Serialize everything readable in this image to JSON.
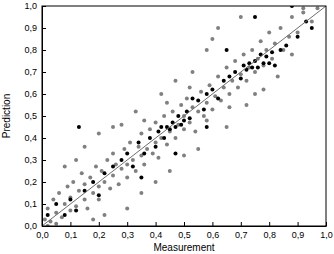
{
  "chart_data": {
    "type": "scatter",
    "x_label": "Measurement",
    "y_label": "Prediction",
    "xlim": [
      0,
      1
    ],
    "ylim": [
      0,
      1
    ],
    "xticks": [
      {
        "value": 0,
        "label": "0,0"
      },
      {
        "value": 0.1,
        "label": "0,1"
      },
      {
        "value": 0.2,
        "label": "0,2"
      },
      {
        "value": 0.3,
        "label": "0,3"
      },
      {
        "value": 0.4,
        "label": "0,4"
      },
      {
        "value": 0.5,
        "label": "0,5"
      },
      {
        "value": 0.6,
        "label": "0,6"
      },
      {
        "value": 0.7,
        "label": "0,7"
      },
      {
        "value": 0.8,
        "label": "0,8"
      },
      {
        "value": 0.9,
        "label": "0,9"
      },
      {
        "value": 1,
        "label": "1,0"
      }
    ],
    "yticks": [
      {
        "value": 0,
        "label": "0,0"
      },
      {
        "value": 0.1,
        "label": "0,1"
      },
      {
        "value": 0.2,
        "label": "0,2"
      },
      {
        "value": 0.3,
        "label": "0,3"
      },
      {
        "value": 0.4,
        "label": "0,4"
      },
      {
        "value": 0.5,
        "label": "0,5"
      },
      {
        "value": 0.6,
        "label": "0,6"
      },
      {
        "value": 0.7,
        "label": "0,7"
      },
      {
        "value": 0.8,
        "label": "0,8"
      },
      {
        "value": 0.9,
        "label": "0,9"
      },
      {
        "value": 1,
        "label": "1,0"
      }
    ],
    "series": [
      {
        "type": "scatter",
        "color": "#808080",
        "marker": "circle",
        "x": [
          0.01,
          0.02,
          0.03,
          0.04,
          0.05,
          0.06,
          0.07,
          0.08,
          0.09,
          0.1,
          0.1,
          0.11,
          0.12,
          0.13,
          0.14,
          0.15,
          0.15,
          0.16,
          0.17,
          0.18,
          0.19,
          0.2,
          0.2,
          0.21,
          0.22,
          0.23,
          0.24,
          0.25,
          0.25,
          0.26,
          0.27,
          0.28,
          0.29,
          0.3,
          0.3,
          0.31,
          0.32,
          0.33,
          0.34,
          0.35,
          0.35,
          0.36,
          0.37,
          0.38,
          0.39,
          0.4,
          0.4,
          0.41,
          0.42,
          0.43,
          0.44,
          0.45,
          0.46,
          0.47,
          0.48,
          0.49,
          0.5,
          0.5,
          0.51,
          0.52,
          0.53,
          0.54,
          0.55,
          0.56,
          0.57,
          0.58,
          0.59,
          0.6,
          0.61,
          0.62,
          0.63,
          0.64,
          0.65,
          0.66,
          0.67,
          0.68,
          0.69,
          0.7,
          0.71,
          0.72,
          0.73,
          0.74,
          0.75,
          0.76,
          0.77,
          0.78,
          0.79,
          0.8,
          0.81,
          0.82,
          0.84,
          0.85,
          0.87,
          0.88,
          0.9,
          0.92,
          0.95,
          0.97,
          0.6,
          0.62,
          0.7,
          0.58,
          0.2,
          0.25,
          0.15,
          0.35,
          0.4,
          0.45,
          0.3,
          0.22,
          0.55,
          0.65,
          0.5,
          0.08,
          0.12,
          0.28,
          0.33,
          0.42,
          0.47,
          0.53,
          0.75,
          0.78,
          0.72,
          0.02,
          0.05,
          0.18,
          0.36,
          0.44,
          0.52,
          0.58,
          0.66,
          0.88,
          0.83,
          0.92
        ],
        "values": [
          0.03,
          0.08,
          0.02,
          0.12,
          0.06,
          0.15,
          0.04,
          0.1,
          0.18,
          0.07,
          0.13,
          0.2,
          0.09,
          0.16,
          0.24,
          0.12,
          0.19,
          0.08,
          0.22,
          0.15,
          0.27,
          0.18,
          0.12,
          0.25,
          0.2,
          0.3,
          0.17,
          0.23,
          0.33,
          0.28,
          0.19,
          0.26,
          0.35,
          0.28,
          0.22,
          0.38,
          0.3,
          0.25,
          0.36,
          0.32,
          0.42,
          0.28,
          0.35,
          0.44,
          0.33,
          0.38,
          0.47,
          0.31,
          0.4,
          0.5,
          0.37,
          0.43,
          0.52,
          0.4,
          0.46,
          0.55,
          0.44,
          0.5,
          0.58,
          0.47,
          0.54,
          0.43,
          0.52,
          0.61,
          0.5,
          0.56,
          0.64,
          0.53,
          0.59,
          0.68,
          0.57,
          0.63,
          0.72,
          0.6,
          0.66,
          0.75,
          0.63,
          0.69,
          0.78,
          0.66,
          0.72,
          0.8,
          0.7,
          0.76,
          0.84,
          0.73,
          0.8,
          0.88,
          0.76,
          0.83,
          0.9,
          0.8,
          0.86,
          0.95,
          0.88,
          0.97,
          0.93,
          0.99,
          0.85,
          0.9,
          0.95,
          0.8,
          0.42,
          0.45,
          0.36,
          0.15,
          0.2,
          0.25,
          0.08,
          0.05,
          0.35,
          0.45,
          0.32,
          0.27,
          0.3,
          0.46,
          0.52,
          0.6,
          0.66,
          0.7,
          0.6,
          0.62,
          0.55,
          0.0,
          0.01,
          0.03,
          0.48,
          0.56,
          0.63,
          0.48,
          0.54,
          0.78,
          0.68,
          0.99
        ]
      },
      {
        "type": "scatter",
        "color": "#000000",
        "marker": "circle",
        "x": [
          0.02,
          0.05,
          0.08,
          0.1,
          0.12,
          0.13,
          0.15,
          0.18,
          0.2,
          0.22,
          0.25,
          0.28,
          0.3,
          0.32,
          0.34,
          0.36,
          0.38,
          0.4,
          0.41,
          0.42,
          0.43,
          0.44,
          0.45,
          0.46,
          0.47,
          0.48,
          0.49,
          0.5,
          0.51,
          0.52,
          0.53,
          0.55,
          0.57,
          0.58,
          0.6,
          0.62,
          0.64,
          0.66,
          0.68,
          0.7,
          0.71,
          0.72,
          0.73,
          0.74,
          0.75,
          0.76,
          0.77,
          0.78,
          0.79,
          0.8,
          0.81,
          0.82,
          0.84,
          0.86,
          0.88,
          0.9,
          0.93,
          0.95,
          0.75,
          0.65,
          0.58,
          0.47,
          0.35
        ],
        "values": [
          0.05,
          0.1,
          0.05,
          0.12,
          0.07,
          0.45,
          0.16,
          0.2,
          0.14,
          0.24,
          0.27,
          0.3,
          0.33,
          0.27,
          0.38,
          0.33,
          0.4,
          0.36,
          0.43,
          0.45,
          0.4,
          0.45,
          0.44,
          0.47,
          0.45,
          0.5,
          0.46,
          0.48,
          0.52,
          0.49,
          0.58,
          0.57,
          0.53,
          0.6,
          0.62,
          0.58,
          0.66,
          0.68,
          0.7,
          0.67,
          0.73,
          0.71,
          0.74,
          0.72,
          0.75,
          0.72,
          0.78,
          0.74,
          0.77,
          0.74,
          0.79,
          0.73,
          0.8,
          0.82,
          1.0,
          0.86,
          0.93,
          0.9,
          0.95,
          0.8,
          0.45,
          0.33,
          0.22
        ]
      },
      {
        "type": "line",
        "color": "#6d6d6d",
        "line_style": "solid",
        "x": [
          0,
          1
        ],
        "values": [
          0,
          1
        ]
      }
    ]
  }
}
